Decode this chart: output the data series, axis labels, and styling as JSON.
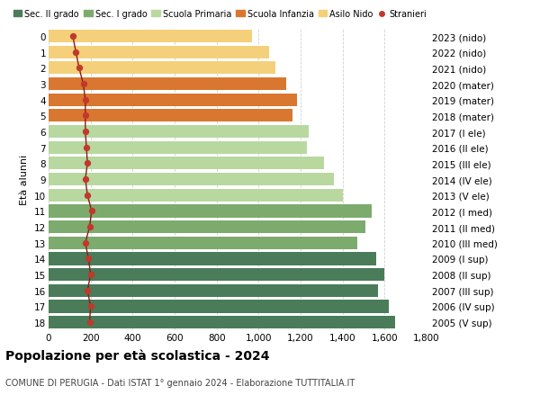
{
  "ages": [
    18,
    17,
    16,
    15,
    14,
    13,
    12,
    11,
    10,
    9,
    8,
    7,
    6,
    5,
    4,
    3,
    2,
    1,
    0
  ],
  "right_labels": [
    "2005 (V sup)",
    "2006 (IV sup)",
    "2007 (III sup)",
    "2008 (II sup)",
    "2009 (I sup)",
    "2010 (III med)",
    "2011 (II med)",
    "2012 (I med)",
    "2013 (V ele)",
    "2014 (IV ele)",
    "2015 (III ele)",
    "2016 (II ele)",
    "2017 (I ele)",
    "2018 (mater)",
    "2019 (mater)",
    "2020 (mater)",
    "2021 (nido)",
    "2022 (nido)",
    "2023 (nido)"
  ],
  "bar_values": [
    1650,
    1620,
    1570,
    1600,
    1560,
    1470,
    1510,
    1540,
    1400,
    1360,
    1310,
    1230,
    1240,
    1160,
    1185,
    1130,
    1080,
    1050,
    970
  ],
  "bar_colors": [
    "#4a7c59",
    "#4a7c59",
    "#4a7c59",
    "#4a7c59",
    "#4a7c59",
    "#7dab6e",
    "#7dab6e",
    "#7dab6e",
    "#b8d8a0",
    "#b8d8a0",
    "#b8d8a0",
    "#b8d8a0",
    "#b8d8a0",
    "#d97730",
    "#d97730",
    "#d97730",
    "#f5d07a",
    "#f5d07a",
    "#f5d07a"
  ],
  "stranieri_values": [
    195,
    200,
    185,
    200,
    190,
    175,
    195,
    205,
    185,
    175,
    185,
    180,
    175,
    175,
    175,
    165,
    145,
    130,
    115
  ],
  "legend_labels": [
    "Sec. II grado",
    "Sec. I grado",
    "Scuola Primaria",
    "Scuola Infanzia",
    "Asilo Nido",
    "Stranieri"
  ],
  "legend_colors": [
    "#4a7c59",
    "#7dab6e",
    "#b8d8a0",
    "#d97730",
    "#f5d07a",
    "#c0392b"
  ],
  "title": "Popolazione per età scolastica - 2024",
  "subtitle": "COMUNE DI PERUGIA - Dati ISTAT 1° gennaio 2024 - Elaborazione TUTTITALIA.IT",
  "ylabel_left": "Età alunni",
  "xlim": [
    0,
    1800
  ],
  "xticks": [
    0,
    200,
    400,
    600,
    800,
    1000,
    1200,
    1400,
    1600,
    1800
  ],
  "background_color": "#ffffff",
  "grid_color": "#cccccc",
  "stranieri_color": "#c0392b",
  "stranieri_line_color": "#8b1a1a"
}
